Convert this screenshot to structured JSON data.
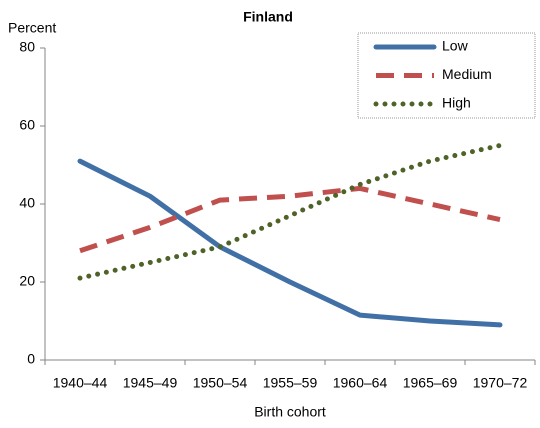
{
  "chart_data": {
    "type": "line",
    "title": "Finland",
    "y_label": "Percent",
    "x_label": "Birth cohort",
    "categories": [
      "1940–44",
      "1945–49",
      "1950–54",
      "1955–59",
      "1960–64",
      "1965–69",
      "1970–72"
    ],
    "series": [
      {
        "name": "Low",
        "color": "#4170a6",
        "style": "solid",
        "values": [
          51,
          42,
          29,
          20,
          11.5,
          10,
          9
        ]
      },
      {
        "name": "Medium",
        "color": "#c0504d",
        "style": "dashed",
        "values": [
          28,
          34,
          41,
          42,
          44,
          40,
          36
        ]
      },
      {
        "name": "High",
        "color": "#4f6228",
        "style": "dotted",
        "values": [
          21,
          25,
          29,
          37,
          45,
          51,
          55
        ]
      }
    ],
    "ylim": [
      0,
      80
    ],
    "yticks": [
      0,
      20,
      40,
      60,
      80
    ],
    "grid": false,
    "legend": "top-right"
  }
}
